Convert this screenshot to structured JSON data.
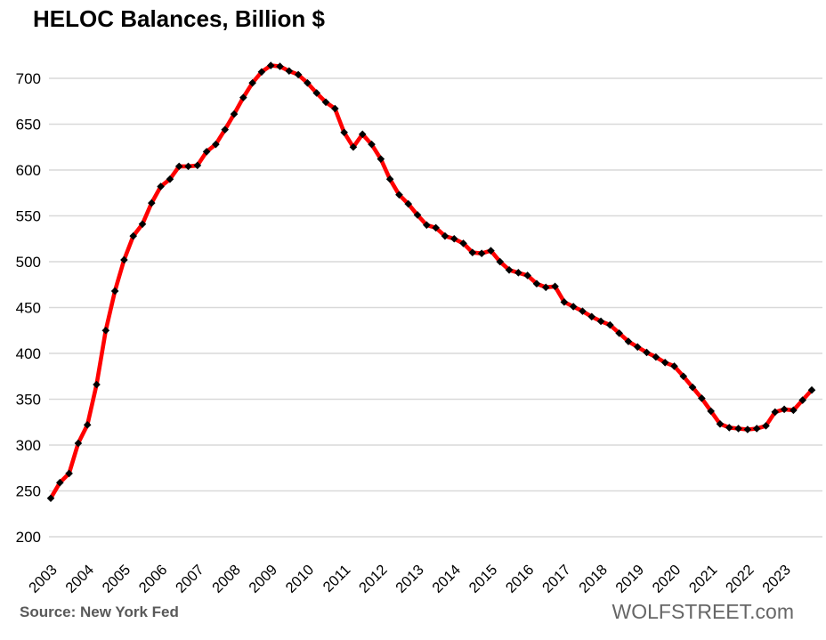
{
  "title": "HELOC Balances, Billion $",
  "source": "Source: New York Fed",
  "watermark": "WOLFSTREET.com",
  "colors": {
    "line": "#ff0000",
    "marker": "#000000",
    "grid": "#d9d9d9",
    "axis_text": "#000000",
    "title_text": "#000000",
    "source_text": "#595959",
    "watermark_text": "#666666",
    "background": "#ffffff"
  },
  "chart_data": {
    "type": "line",
    "title": "HELOC Balances, Billion $",
    "xlabel": "",
    "ylabel": "",
    "frequency": "quarterly",
    "x_start": "2003 Q1",
    "x_end": "2023 Q4",
    "ylim": [
      200,
      700
    ],
    "grid": true,
    "legend": "none",
    "marker_shape": "diamond",
    "y_ticks": [
      700,
      650,
      600,
      550,
      500,
      450,
      400,
      350,
      300,
      250,
      200
    ],
    "x_tick_labels": [
      "2003",
      "2004",
      "2005",
      "2006",
      "2007",
      "2008",
      "2009",
      "2010",
      "2011",
      "2012",
      "2013",
      "2014",
      "2015",
      "2016",
      "2017",
      "2018",
      "2019",
      "2020",
      "2021",
      "2022",
      "2023"
    ],
    "series": [
      {
        "name": "HELOC balances, billion $",
        "values": [
          242,
          259,
          269,
          302,
          322,
          366,
          425,
          468,
          502,
          528,
          541,
          564,
          582,
          590,
          604,
          604,
          605,
          620,
          628,
          644,
          661,
          679,
          695,
          707,
          714,
          713,
          708,
          704,
          695,
          684,
          674,
          667,
          641,
          625,
          639,
          628,
          612,
          590,
          573,
          563,
          551,
          540,
          537,
          528,
          525,
          520,
          510,
          509,
          512,
          500,
          491,
          488,
          485,
          476,
          472,
          473,
          456,
          451,
          446,
          440,
          435,
          431,
          422,
          413,
          407,
          401,
          396,
          390,
          386,
          375,
          363,
          351,
          337,
          323,
          319,
          318,
          317,
          318,
          321,
          336,
          339,
          338,
          349,
          360
        ]
      }
    ]
  }
}
